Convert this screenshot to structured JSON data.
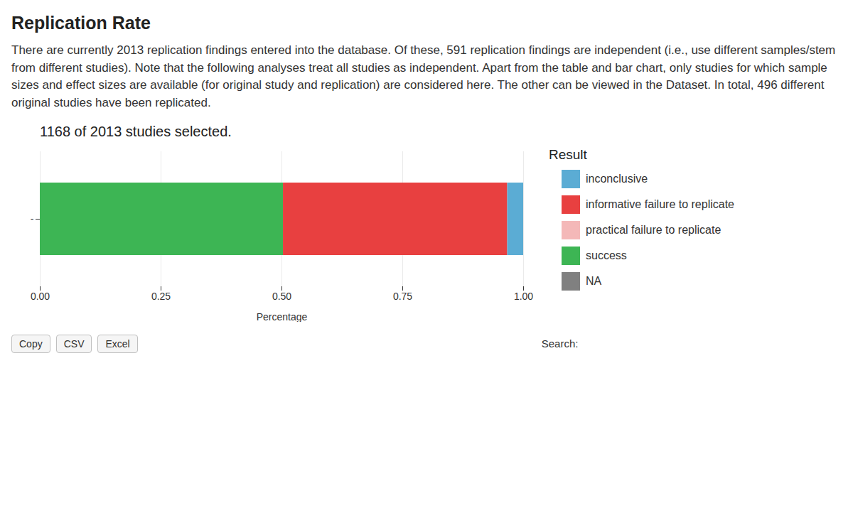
{
  "chart_data": {
    "type": "bar",
    "orientation": "horizontal",
    "stacked": true,
    "title": "Replication Rate",
    "description": "There are currently 2013 replication findings entered into the database. Of these, 591 replication findings are independent (i.e., use different samples/stem from different studies). Note that the following analyses treat all studies as independent. Apart from the table and bar chart, only studies for which sample sizes and effect sizes are available (for original study and replication) are considered here. The other can be viewed in the Dataset. In total, 496 different original studies have been replicated.",
    "subtitle": "1168 of 2013 studies selected.",
    "categories": [
      "-"
    ],
    "series": [
      {
        "name": "success",
        "color": "#3db554",
        "values": [
          0.503
        ]
      },
      {
        "name": "informative failure to replicate",
        "color": "#e84040",
        "values": [
          0.464
        ]
      },
      {
        "name": "practical failure to replicate",
        "color": "#f4b8b8",
        "values": [
          0.0
        ]
      },
      {
        "name": "inconclusive",
        "color": "#5bacd4",
        "values": [
          0.033
        ]
      },
      {
        "name": "NA",
        "color": "#808080",
        "values": [
          0.0
        ]
      }
    ],
    "legend": "right",
    "legend_title": "Result",
    "legend_order": [
      "inconclusive",
      "informative failure to replicate",
      "practical failure to replicate",
      "success",
      "NA"
    ],
    "xlabel": "Percentage",
    "xlim": [
      0.0,
      1.0
    ],
    "xticks": [
      {
        "value": 0.0,
        "label": "0.00"
      },
      0.25,
      {
        "value": 0.5,
        "label": "0.50"
      },
      0.75,
      {
        "value": 1.0,
        "label": "1.00"
      }
    ],
    "grid": true,
    "buttons": [
      "Copy",
      "CSV",
      "Excel"
    ],
    "search_label": "Search:"
  }
}
